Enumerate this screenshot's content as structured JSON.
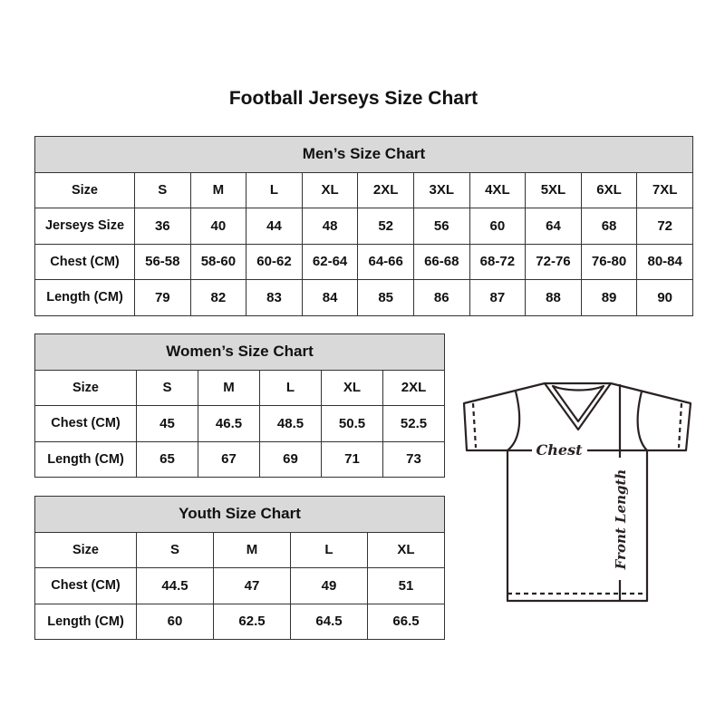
{
  "title": "Football Jerseys Size Chart",
  "men": {
    "heading": "Men’s Size Chart",
    "rows": [
      {
        "label": "Size",
        "values": [
          "S",
          "M",
          "L",
          "XL",
          "2XL",
          "3XL",
          "4XL",
          "5XL",
          "6XL",
          "7XL"
        ]
      },
      {
        "label": "Jerseys Size",
        "values": [
          "36",
          "40",
          "44",
          "48",
          "52",
          "56",
          "60",
          "64",
          "68",
          "72"
        ]
      },
      {
        "label": "Chest (CM)",
        "values": [
          "56-58",
          "58-60",
          "60-62",
          "62-64",
          "64-66",
          "66-68",
          "68-72",
          "72-76",
          "76-80",
          "80-84"
        ]
      },
      {
        "label": "Length (CM)",
        "values": [
          "79",
          "82",
          "83",
          "84",
          "85",
          "86",
          "87",
          "88",
          "89",
          "90"
        ]
      }
    ]
  },
  "women": {
    "heading": "Women’s Size Chart",
    "rows": [
      {
        "label": "Size",
        "values": [
          "S",
          "M",
          "L",
          "XL",
          "2XL"
        ]
      },
      {
        "label": "Chest (CM)",
        "values": [
          "45",
          "46.5",
          "48.5",
          "50.5",
          "52.5"
        ]
      },
      {
        "label": "Length (CM)",
        "values": [
          "65",
          "67",
          "69",
          "71",
          "73"
        ]
      }
    ]
  },
  "youth": {
    "heading": "Youth Size Chart",
    "rows": [
      {
        "label": "Size",
        "values": [
          "S",
          "M",
          "L",
          "XL"
        ]
      },
      {
        "label": "Chest (CM)",
        "values": [
          "44.5",
          "47",
          "49",
          "51"
        ]
      },
      {
        "label": "Length (CM)",
        "values": [
          "60",
          "62.5",
          "64.5",
          "66.5"
        ]
      }
    ]
  },
  "diagram": {
    "chest_label": "Chest",
    "length_label": "Front Length"
  }
}
